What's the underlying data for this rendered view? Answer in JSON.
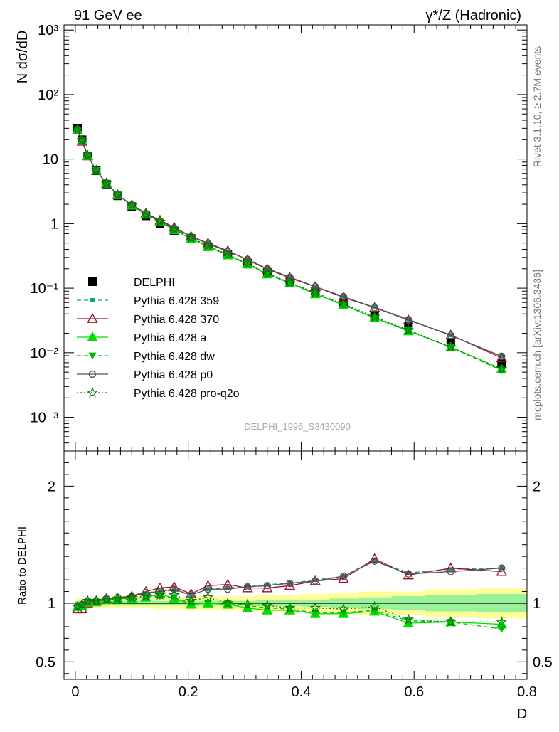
{
  "header": {
    "left_label": "91 GeV ee",
    "right_label": "γ*/Z (Hadronic)"
  },
  "side": {
    "rivet_label": "Rivet 3.1.10, ≥ 2.7M events",
    "mcplots_label": "mcplots.cern.ch [arXiv:1306.3436]"
  },
  "watermark": "DELPHI_1996_S3430090",
  "colors": {
    "delphi": "#000000",
    "p359": "#00aa88",
    "p370": "#a0102a",
    "pa": "#00dd00",
    "pdw": "#00bb00",
    "pp0": "#555555",
    "pq2o": "#007700",
    "band_inner": "#99f299",
    "band_outer": "#ffff99"
  },
  "chart_data": [
    {
      "type": "line",
      "yscale": "log",
      "ylabel": "N dσ/dD",
      "xlim": [
        -0.02,
        0.8
      ],
      "ylim": [
        0.0003,
        1200
      ],
      "y_tick_labels": [
        "10⁻³",
        "10⁻²",
        "10⁻¹",
        "1",
        "10",
        "10²",
        "10³"
      ],
      "y_tick_values": [
        0.001,
        0.01,
        0.1,
        1,
        10,
        100,
        1000
      ],
      "x": [
        0.004,
        0.012,
        0.022,
        0.037,
        0.055,
        0.075,
        0.1,
        0.125,
        0.15,
        0.175,
        0.205,
        0.235,
        0.27,
        0.305,
        0.34,
        0.38,
        0.425,
        0.475,
        0.53,
        0.59,
        0.665,
        0.755
      ],
      "series": [
        {
          "name": "DELPHI",
          "key": "delphi",
          "marker": "square",
          "line": "none",
          "values": [
            29.5,
            20,
            11.2,
            6.6,
            4.1,
            2.7,
            1.85,
            1.32,
            1.0,
            0.77,
            0.59,
            0.44,
            0.33,
            0.245,
            0.175,
            0.127,
            0.089,
            0.06,
            0.037,
            0.026,
            0.0145,
            0.0068
          ]
        },
        {
          "name": "Pythia 6.428 359",
          "key": "p359",
          "marker": "square-small",
          "line": "dashed",
          "values": [
            28.5,
            19.0,
            11.3,
            6.7,
            4.25,
            2.8,
            1.95,
            1.42,
            1.1,
            0.86,
            0.63,
            0.49,
            0.37,
            0.28,
            0.203,
            0.148,
            0.106,
            0.073,
            0.051,
            0.033,
            0.0187,
            0.0088
          ]
        },
        {
          "name": "Pythia 6.428 370",
          "key": "p370",
          "marker": "triangle-open",
          "line": "solid",
          "values": [
            28,
            18.8,
            11.2,
            6.7,
            4.25,
            2.8,
            1.96,
            1.45,
            1.13,
            0.88,
            0.635,
            0.5,
            0.38,
            0.275,
            0.197,
            0.145,
            0.105,
            0.072,
            0.05,
            0.032,
            0.0188,
            0.0083
          ]
        },
        {
          "name": "Pythia 6.428 a",
          "key": "pa",
          "marker": "triangle",
          "line": "solid",
          "values": [
            28.6,
            19.6,
            11.3,
            6.7,
            4.2,
            2.8,
            1.92,
            1.39,
            1.08,
            0.8,
            0.585,
            0.44,
            0.325,
            0.235,
            0.165,
            0.12,
            0.081,
            0.055,
            0.0345,
            0.0217,
            0.0122,
            0.0056
          ]
        },
        {
          "name": "Pythia 6.428 dw",
          "key": "pdw",
          "marker": "triangle-down",
          "line": "dashed",
          "values": [
            28.5,
            19.5,
            11.3,
            6.7,
            4.2,
            2.78,
            1.92,
            1.39,
            1.06,
            0.81,
            0.59,
            0.44,
            0.33,
            0.24,
            0.168,
            0.12,
            0.082,
            0.055,
            0.0345,
            0.0222,
            0.0122,
            0.0053
          ]
        },
        {
          "name": "Pythia 6.428 p0",
          "key": "pp0",
          "marker": "circle-open",
          "line": "solid",
          "values": [
            29,
            19.8,
            11.4,
            6.7,
            4.25,
            2.82,
            1.95,
            1.44,
            1.1,
            0.86,
            0.63,
            0.49,
            0.37,
            0.28,
            0.2,
            0.148,
            0.106,
            0.074,
            0.05,
            0.0325,
            0.0185,
            0.0088
          ]
        },
        {
          "name": "Pythia 6.428 pro-q2o",
          "key": "pq2o",
          "marker": "star-open",
          "line": "dotted",
          "values": [
            28.6,
            19.8,
            11.4,
            6.7,
            4.2,
            2.8,
            1.93,
            1.39,
            1.07,
            0.82,
            0.6,
            0.46,
            0.33,
            0.24,
            0.17,
            0.122,
            0.085,
            0.057,
            0.036,
            0.0225,
            0.0122,
            0.0056
          ]
        }
      ],
      "legend_position": "center-left"
    },
    {
      "type": "line",
      "ylabel": "Ratio to DELPHI",
      "xlabel": "D",
      "xlim": [
        -0.02,
        0.8
      ],
      "ylim": [
        0.35,
        2.3
      ],
      "y_tick_labels": [
        "0.5",
        "1",
        "2"
      ],
      "y_tick_values": [
        0.5,
        1,
        2
      ],
      "x_tick_labels": [
        "0",
        "0.2",
        "0.4",
        "0.6",
        "0.8"
      ],
      "x_tick_values": [
        0,
        0.2,
        0.4,
        0.6,
        0.8
      ],
      "x": [
        0.004,
        0.012,
        0.022,
        0.037,
        0.055,
        0.075,
        0.1,
        0.125,
        0.15,
        0.175,
        0.205,
        0.235,
        0.27,
        0.305,
        0.34,
        0.38,
        0.425,
        0.475,
        0.53,
        0.59,
        0.665,
        0.755
      ],
      "bin_edges": [
        0.0,
        0.008,
        0.016,
        0.028,
        0.046,
        0.064,
        0.086,
        0.114,
        0.136,
        0.164,
        0.19,
        0.22,
        0.25,
        0.29,
        0.32,
        0.36,
        0.4,
        0.45,
        0.5,
        0.56,
        0.62,
        0.71,
        0.8
      ],
      "band_inner": [
        0.02,
        0.02,
        0.02,
        0.02,
        0.02,
        0.02,
        0.02,
        0.02,
        0.02,
        0.02,
        0.02,
        0.02,
        0.02,
        0.02,
        0.025,
        0.025,
        0.03,
        0.04,
        0.05,
        0.06,
        0.07,
        0.08
      ],
      "band_outer": [
        0.04,
        0.04,
        0.04,
        0.04,
        0.04,
        0.04,
        0.04,
        0.04,
        0.05,
        0.05,
        0.06,
        0.06,
        0.06,
        0.06,
        0.07,
        0.07,
        0.08,
        0.09,
        0.1,
        0.1,
        0.12,
        0.13
      ],
      "series": [
        {
          "name": "Pythia 6.428 359",
          "key": "p359",
          "values": [
            0.97,
            0.98,
            1.01,
            1.02,
            1.04,
            1.04,
            1.06,
            1.08,
            1.1,
            1.11,
            1.07,
            1.12,
            1.13,
            1.14,
            1.16,
            1.17,
            1.2,
            1.23,
            1.37,
            1.26,
            1.29,
            1.3
          ]
        },
        {
          "name": "Pythia 6.428 370",
          "key": "p370",
          "values": [
            0.95,
            0.95,
            1.0,
            1.02,
            1.04,
            1.04,
            1.06,
            1.1,
            1.13,
            1.14,
            1.08,
            1.15,
            1.16,
            1.13,
            1.13,
            1.15,
            1.19,
            1.21,
            1.38,
            1.24,
            1.3,
            1.27
          ]
        },
        {
          "name": "Pythia 6.428 a",
          "key": "pa",
          "values": [
            0.97,
            0.98,
            1.01,
            1.01,
            1.03,
            1.04,
            1.04,
            1.05,
            1.08,
            1.04,
            0.99,
            1.0,
            0.99,
            0.96,
            0.94,
            0.94,
            0.91,
            0.91,
            0.93,
            0.83,
            0.84,
            0.82
          ]
        },
        {
          "name": "Pythia 6.428 dw",
          "key": "pdw",
          "values": [
            0.97,
            0.97,
            1.01,
            1.01,
            1.03,
            1.03,
            1.04,
            1.05,
            1.06,
            1.05,
            1.0,
            1.0,
            1.0,
            0.98,
            0.96,
            0.95,
            0.92,
            0.92,
            0.94,
            0.85,
            0.84,
            0.78
          ]
        },
        {
          "name": "Pythia 6.428 p0",
          "key": "pp0",
          "values": [
            0.98,
            0.99,
            1.02,
            1.02,
            1.04,
            1.05,
            1.06,
            1.09,
            1.1,
            1.12,
            1.07,
            1.12,
            1.12,
            1.14,
            1.15,
            1.17,
            1.19,
            1.23,
            1.36,
            1.25,
            1.27,
            1.3
          ]
        },
        {
          "name": "Pythia 6.428 pro-q2o",
          "key": "pq2o",
          "values": [
            0.97,
            0.99,
            1.02,
            1.02,
            1.03,
            1.04,
            1.05,
            1.06,
            1.07,
            1.07,
            1.02,
            1.05,
            1.0,
            0.99,
            0.98,
            0.96,
            0.96,
            0.95,
            0.97,
            0.86,
            0.84,
            0.84
          ]
        }
      ]
    }
  ]
}
